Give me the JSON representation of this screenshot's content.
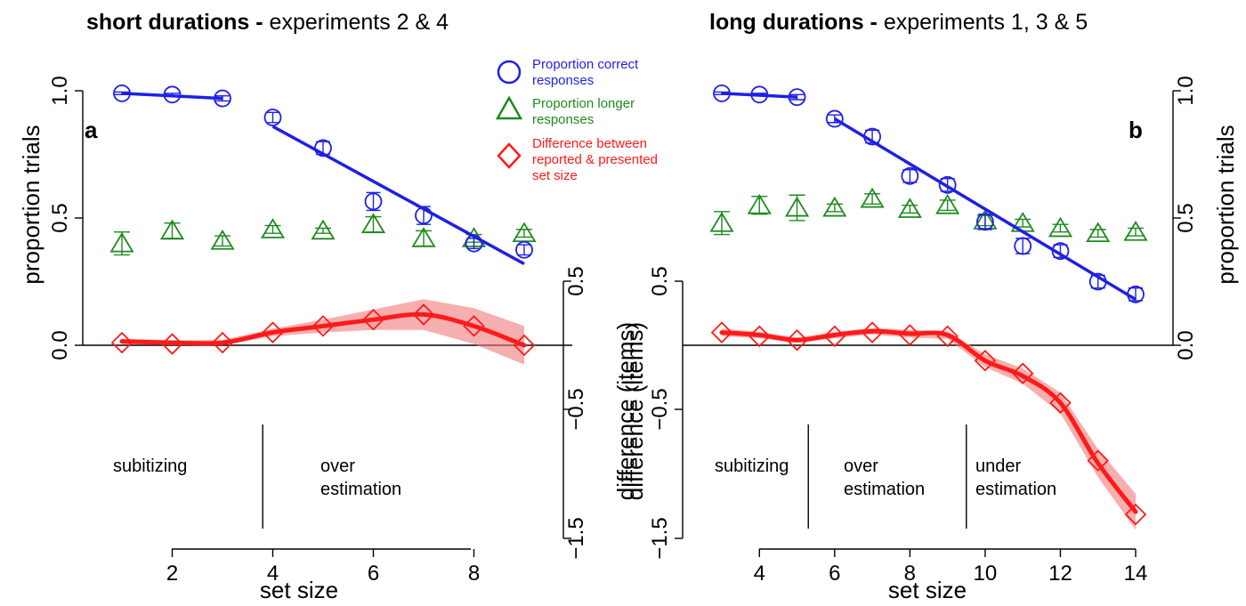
{
  "colors": {
    "correct": "#1f1fe6",
    "longer": "#1e8a1e",
    "difference": "#ff1a1a",
    "ribbon": "#f07a7a",
    "axis": "#000000"
  },
  "legend": {
    "correct": "Proportion correct responses",
    "correct_lines": [
      "Proportion correct",
      "responses"
    ],
    "longer": "Proportion longer responses",
    "longer_lines": [
      "Proportion longer",
      "responses"
    ],
    "difference": "Difference between reported & presented set size",
    "difference_lines": [
      "Difference between",
      "reported & presented",
      "set size"
    ]
  },
  "chart_data": [
    {
      "type": "line",
      "panel": "a",
      "title_bold": "short durations -",
      "title_rest": " experiments 2 & 4",
      "xlabel": "set size",
      "ylabel_left": "proportion trials",
      "ylabel_right": "difference (items)",
      "xlim": [
        1,
        9
      ],
      "xticks": [
        2,
        4,
        6,
        8
      ],
      "ylim_proportion": [
        0,
        1
      ],
      "yticks_proportion": [
        "0.0",
        "0.5",
        "1.0"
      ],
      "ylim_difference": [
        -1.5,
        0.5
      ],
      "yticks_difference": [
        "0.5",
        "−0.5",
        "−1.5"
      ],
      "regions": [
        {
          "label_lines": [
            "subitizing"
          ],
          "from": 1,
          "to": 3.8
        },
        {
          "label_lines": [
            "over",
            "estimation"
          ],
          "from": 3.8,
          "to": 9
        }
      ],
      "region_dividers": [
        3.8
      ],
      "series": [
        {
          "name": "Proportion correct responses",
          "marker": "circle",
          "x": [
            1,
            2,
            3,
            4,
            5,
            6,
            7,
            8,
            9
          ],
          "y": [
            0.99,
            0.985,
            0.97,
            0.895,
            0.775,
            0.565,
            0.51,
            0.4,
            0.375
          ],
          "err": [
            0.005,
            0.005,
            0.01,
            0.02,
            0.025,
            0.035,
            0.035,
            0.02,
            0.02
          ],
          "fits": [
            {
              "x": [
                1,
                3
              ],
              "y": [
                0.99,
                0.97
              ]
            },
            {
              "x": [
                4,
                9
              ],
              "y": [
                0.86,
                0.32
              ]
            }
          ]
        },
        {
          "name": "Proportion longer responses",
          "marker": "triangle",
          "x": [
            1,
            2,
            3,
            4,
            5,
            6,
            7,
            8,
            9
          ],
          "y": [
            0.4,
            0.45,
            0.41,
            0.455,
            0.45,
            0.475,
            0.42,
            0.42,
            0.44
          ],
          "err": [
            0.045,
            0.03,
            0.02,
            0.015,
            0.01,
            0.03,
            0.03,
            0.015,
            0.015
          ]
        },
        {
          "name": "Difference between reported & presented set size",
          "marker": "diamond",
          "axis": "difference",
          "x": [
            1,
            2,
            3,
            4,
            5,
            6,
            7,
            8,
            9
          ],
          "y": [
            0.02,
            0.01,
            0.02,
            0.1,
            0.15,
            0.2,
            0.24,
            0.15,
            0.0
          ],
          "smooth": [
            0.03,
            0.02,
            0.02,
            0.1,
            0.15,
            0.2,
            0.24,
            0.15,
            0.0
          ],
          "band": [
            0.02,
            0.02,
            0.02,
            0.03,
            0.05,
            0.08,
            0.12,
            0.14,
            0.15
          ]
        }
      ]
    },
    {
      "type": "line",
      "panel": "b",
      "title_bold": "long durations -",
      "title_rest": " experiments 1, 3 & 5",
      "xlabel": "set size",
      "ylabel_left": "difference (items)",
      "ylabel_right": "proportion trials",
      "xlim": [
        3,
        14
      ],
      "xticks": [
        4,
        6,
        8,
        10,
        12,
        14
      ],
      "ylim_proportion": [
        0,
        1
      ],
      "yticks_proportion": [
        "0.0",
        "0.5",
        "1.0"
      ],
      "ylim_difference": [
        -1.5,
        0.5
      ],
      "yticks_difference": [
        "0.5",
        "−0.5",
        "−1.5"
      ],
      "regions": [
        {
          "label_lines": [
            "subitizing"
          ],
          "from": 3,
          "to": 5.3
        },
        {
          "label_lines": [
            "over",
            "estimation"
          ],
          "from": 5.3,
          "to": 9.5
        },
        {
          "label_lines": [
            "under",
            "estimation"
          ],
          "from": 9.5,
          "to": 14
        }
      ],
      "region_dividers": [
        5.3,
        9.5
      ],
      "series": [
        {
          "name": "Proportion correct responses",
          "marker": "circle",
          "x": [
            3,
            4,
            5,
            6,
            7,
            8,
            9,
            10,
            11,
            12,
            13,
            14
          ],
          "y": [
            0.99,
            0.985,
            0.975,
            0.89,
            0.82,
            0.665,
            0.63,
            0.485,
            0.39,
            0.37,
            0.25,
            0.2
          ],
          "err": [
            0.005,
            0.005,
            0.01,
            0.015,
            0.025,
            0.025,
            0.025,
            0.03,
            0.03,
            0.025,
            0.025,
            0.025
          ],
          "fits": [
            {
              "x": [
                3,
                5
              ],
              "y": [
                0.99,
                0.975
              ]
            },
            {
              "x": [
                6,
                14
              ],
              "y": [
                0.89,
                0.18
              ]
            }
          ]
        },
        {
          "name": "Proportion longer responses",
          "marker": "triangle",
          "x": [
            3,
            4,
            5,
            6,
            7,
            8,
            9,
            10,
            11,
            12,
            13,
            14
          ],
          "y": [
            0.48,
            0.55,
            0.54,
            0.54,
            0.575,
            0.535,
            0.55,
            0.49,
            0.48,
            0.46,
            0.44,
            0.445
          ],
          "err": [
            0.045,
            0.035,
            0.05,
            0.015,
            0.02,
            0.015,
            0.02,
            0.02,
            0.015,
            0.015,
            0.015,
            0.015
          ]
        },
        {
          "name": "Difference between reported & presented set size",
          "marker": "diamond",
          "axis": "difference",
          "x": [
            3,
            4,
            5,
            6,
            7,
            8,
            9,
            10,
            11,
            12,
            13,
            14
          ],
          "y": [
            0.1,
            0.07,
            0.04,
            0.07,
            0.1,
            0.08,
            0.07,
            -0.12,
            -0.22,
            -0.45,
            -0.9,
            -1.32
          ],
          "smooth": [
            0.1,
            0.08,
            0.04,
            0.08,
            0.11,
            0.09,
            0.08,
            -0.12,
            -0.24,
            -0.45,
            -0.92,
            -1.3
          ],
          "band": [
            0.03,
            0.025,
            0.02,
            0.025,
            0.025,
            0.03,
            0.03,
            0.05,
            0.06,
            0.08,
            0.11,
            0.14
          ]
        }
      ]
    }
  ]
}
